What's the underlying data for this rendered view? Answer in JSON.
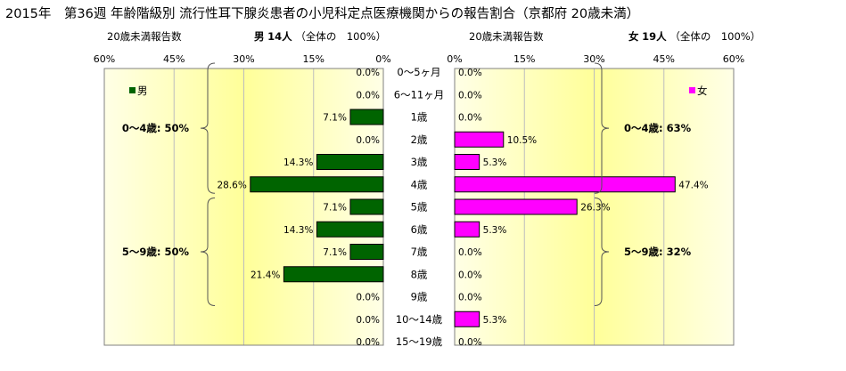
{
  "title": "2015年　第36週 年齢階級別 流行性耳下腺炎患者の小児科定点医療機関からの報告割合（京都府 20歳未満）",
  "left_header": {
    "label": "20歳未満報告数",
    "sex": "男",
    "count": "14人",
    "total_label": "（全体の　100%）"
  },
  "right_header": {
    "label": "20歳未満報告数",
    "sex": "女",
    "count": "19人",
    "total_label": "（全体の　100%）"
  },
  "chart_data": {
    "type": "bar",
    "orientation": "horizontal-butterfly",
    "categories": [
      "0～5ヶ月",
      "6～11ヶ月",
      "1歳",
      "2歳",
      "3歳",
      "4歳",
      "5歳",
      "6歳",
      "7歳",
      "8歳",
      "9歳",
      "10～14歳",
      "15～19歳"
    ],
    "x_ticks": [
      "60%",
      "45%",
      "30%",
      "15%",
      "0%"
    ],
    "xlim": [
      0,
      60
    ],
    "series": [
      {
        "name": "男",
        "side": "left",
        "color": "#006400",
        "values": [
          0.0,
          0.0,
          7.1,
          0.0,
          14.3,
          28.6,
          7.1,
          14.3,
          7.1,
          21.4,
          0.0,
          0.0,
          0.0
        ],
        "labels": [
          "0.0%",
          "0.0%",
          "7.1%",
          "0.0%",
          "14.3%",
          "28.6%",
          "7.1%",
          "14.3%",
          "7.1%",
          "21.4%",
          "0.0%",
          "0.0%",
          "0.0%"
        ]
      },
      {
        "name": "女",
        "side": "right",
        "color": "#ff00ff",
        "values": [
          0.0,
          0.0,
          0.0,
          10.5,
          5.3,
          47.4,
          26.3,
          5.3,
          0.0,
          0.0,
          0.0,
          5.3,
          0.0
        ],
        "labels": [
          "0.0%",
          "0.0%",
          "0.0%",
          "10.5%",
          "5.3%",
          "47.4%",
          "26.3%",
          "5.3%",
          "0.0%",
          "0.0%",
          "0.0%",
          "5.3%",
          "0.0%"
        ]
      }
    ],
    "annotations": {
      "left": [
        {
          "text": "0～4歳: 50%",
          "from": 0,
          "to": 5
        },
        {
          "text": "5～9歳: 50%",
          "from": 6,
          "to": 10
        }
      ],
      "right": [
        {
          "text": "0～4歳: 63%",
          "from": 0,
          "to": 5
        },
        {
          "text": "5～9歳: 32%",
          "from": 6,
          "to": 10
        }
      ]
    },
    "grid": true,
    "legend": {
      "left": "top-left",
      "right": "top-right"
    }
  }
}
